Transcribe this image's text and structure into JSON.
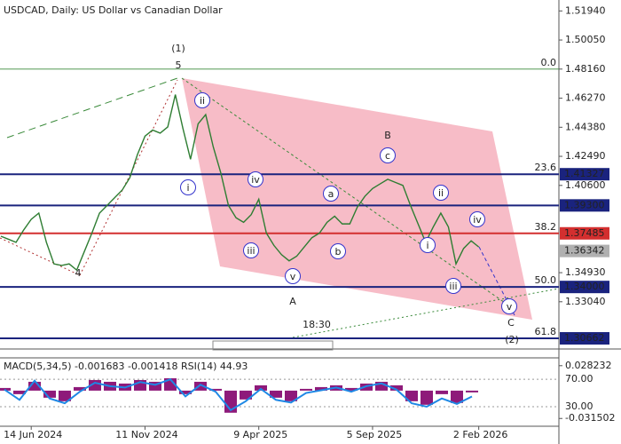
{
  "chart_data": [
    {
      "type": "line",
      "title": "USDCAD, Daily:  US Dollar vs Canadian Dollar",
      "categories": [
        null,
        null,
        null,
        null,
        "14 Jun 2024",
        null,
        null,
        null,
        null,
        null,
        null,
        null,
        null,
        null,
        null,
        null,
        null,
        null,
        null,
        "11 Nov 2024",
        null,
        null,
        null,
        null,
        null,
        null,
        null,
        null,
        null,
        null,
        null,
        null,
        null,
        null,
        "9 Apr 2025",
        null,
        null,
        null,
        null,
        null,
        null,
        null,
        null,
        null,
        null,
        null,
        null,
        null,
        null,
        "5 Sep 2025",
        null,
        null,
        null,
        null,
        null,
        null,
        null,
        null,
        null,
        null,
        null,
        null,
        null,
        "2 Feb 2026"
      ],
      "values": [
        1.373,
        1.371,
        1.369,
        1.377,
        1.384,
        1.388,
        1.369,
        1.355,
        1.354,
        1.355,
        1.351,
        1.363,
        1.375,
        1.388,
        1.393,
        1.398,
        1.403,
        1.411,
        1.426,
        1.438,
        1.442,
        1.44,
        1.444,
        1.465,
        1.443,
        1.423,
        1.446,
        1.452,
        1.431,
        1.414,
        1.393,
        1.385,
        1.382,
        1.387,
        1.397,
        1.375,
        1.367,
        1.361,
        1.357,
        1.36,
        1.366,
        1.372,
        1.375,
        1.382,
        1.386,
        1.381,
        1.381,
        1.392,
        1.399,
        1.404,
        1.407,
        1.41,
        1.408,
        1.406,
        1.393,
        1.381,
        1.369,
        1.379,
        1.388,
        1.379,
        1.355,
        1.365,
        1.37,
        1.366
      ],
      "color": "#2e7d32",
      "ylim": [
        1.2997,
        1.5265
      ],
      "yticks": [
        {
          "value": 1.5194,
          "label": "1.51940"
        },
        {
          "value": 1.5005,
          "label": "1.50050"
        },
        {
          "value": 1.4816,
          "label": "1.48160"
        },
        {
          "value": 1.4627,
          "label": "1.46270"
        },
        {
          "value": 1.4438,
          "label": "1.44380"
        },
        {
          "value": 1.4249,
          "label": "1.42490"
        },
        {
          "value": 1.406,
          "label": "1.40600"
        },
        {
          "value": 1.3493,
          "label": "1.34930"
        },
        {
          "value": 1.3304,
          "label": "1.33040"
        }
      ],
      "levels": [
        {
          "value": 1.41327,
          "label": "1.41327",
          "color": "#1a237e"
        },
        {
          "value": 1.393,
          "label": "1.39300",
          "color": "#1a237e"
        },
        {
          "value": 1.37485,
          "label": "1.37485",
          "color": "#d32f2f"
        },
        {
          "value": 1.36342,
          "label": "1.36342",
          "color": "#b0b0b0"
        },
        {
          "value": 1.34,
          "label": "1.34000",
          "color": "#1a237e"
        },
        {
          "value": 1.30662,
          "label": "1.30662",
          "color": "#1a237e"
        }
      ],
      "fib_levels": [
        {
          "value": 1.4816,
          "label": "0.0"
        },
        {
          "value": 1.41327,
          "label": "23.6"
        },
        {
          "value": 1.37485,
          "label": "38.2"
        },
        {
          "value": 1.34,
          "label": "50.0"
        },
        {
          "value": 1.30662,
          "label": "61.8"
        }
      ],
      "annotations": [
        {
          "text": "(1)",
          "color": "#3a8a3a",
          "circled": false
        },
        {
          "text": "5",
          "color": "#8b3a2a",
          "circled": false
        },
        {
          "text": "4",
          "color": "#8b3a2a",
          "circled": false
        },
        {
          "text": "ii",
          "color": "#3333cc",
          "circled": true
        },
        {
          "text": "i",
          "color": "#3333cc",
          "circled": true
        },
        {
          "text": "iv",
          "color": "#3333cc",
          "circled": true
        },
        {
          "text": "iii",
          "color": "#3333cc",
          "circled": true
        },
        {
          "text": "v",
          "color": "#3333cc",
          "circled": true
        },
        {
          "text": "A",
          "color": "#8b3a2a",
          "circled": false
        },
        {
          "text": "a",
          "color": "#3333cc",
          "circled": true
        },
        {
          "text": "b",
          "color": "#3333cc",
          "circled": true
        },
        {
          "text": "c",
          "color": "#3333cc",
          "circled": true
        },
        {
          "text": "B",
          "color": "#8b3a2a",
          "circled": false
        },
        {
          "text": "ii",
          "color": "#3333cc",
          "circled": true
        },
        {
          "text": "iv",
          "color": "#3333cc",
          "circled": true
        },
        {
          "text": "i",
          "color": "#3333cc",
          "circled": true
        },
        {
          "text": "iii",
          "color": "#3333cc",
          "circled": true
        },
        {
          "text": "v",
          "color": "#3333cc",
          "circled": true
        },
        {
          "text": "C",
          "color": "#3a8a3a",
          "circled": false
        },
        {
          "text": "(2)",
          "color": "#3a8a3a",
          "circled": false
        }
      ],
      "timer": "18:30"
    },
    {
      "type": "macd",
      "title": "MACD(5,34,5) -0.001683 -0.001418 RSI(14) 44.93",
      "values": [
        0.003,
        -0.004,
        0.01,
        -0.008,
        -0.012,
        0.004,
        0.012,
        0.01,
        0.008,
        0.012,
        0.01,
        0.014,
        -0.004,
        0.01,
        0.002,
        -0.025,
        -0.01,
        0.006,
        -0.008,
        -0.012,
        0.002,
        0.004,
        0.006,
        0.003,
        0.008,
        0.01,
        0.006,
        -0.012,
        -0.016,
        -0.004,
        -0.014,
        -0.002
      ],
      "color": "#8e1a7a",
      "rsi": {
        "values": [
          55,
          40,
          68,
          42,
          35,
          52,
          65,
          60,
          58,
          66,
          62,
          70,
          45,
          62,
          52,
          25,
          38,
          56,
          40,
          36,
          50,
          54,
          58,
          52,
          60,
          64,
          55,
          35,
          30,
          42,
          34,
          44.93
        ],
        "color": "#1e88e5",
        "axis": "y2"
      },
      "ylim": [
        -0.0403,
        0.03708
      ],
      "yticks": [
        0.028232,
        -0.031502
      ],
      "y2lim": [
        1.4,
        101.4
      ],
      "y2ticks": [
        {
          "value": 70,
          "label": "70.00"
        },
        {
          "value": 30,
          "label": "30.00"
        }
      ]
    }
  ]
}
